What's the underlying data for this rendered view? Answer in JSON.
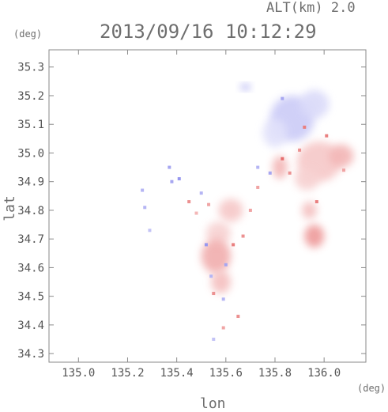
{
  "header": {
    "alt_label": "ALT(km) 2.0",
    "timestamp": "2013/09/16 10:12:29"
  },
  "chart_data": {
    "type": "heatmap",
    "title": "2013/09/16 10:12:29",
    "subtitle": "ALT(km) 2.0",
    "xlabel": "lon",
    "ylabel": "lat",
    "x_unit": "(deg)",
    "y_unit": "(deg)",
    "xlim": [
      134.88,
      136.17
    ],
    "ylim": [
      34.27,
      35.36
    ],
    "xticks": [
      "135.0",
      "135.2",
      "135.4",
      "135.6",
      "135.8",
      "136.0"
    ],
    "yticks": [
      "34.3",
      "34.4",
      "34.5",
      "34.6",
      "34.7",
      "34.8",
      "34.9",
      "35.0",
      "35.1",
      "35.2",
      "35.3"
    ],
    "grid": false,
    "colors": {
      "positive": "#e04848",
      "negative": "#6a6ae8",
      "frame": "#888888"
    },
    "echo_regions": [
      {
        "lon": 135.87,
        "lat": 35.12,
        "rx": 0.09,
        "ry": 0.08,
        "value": -0.35
      },
      {
        "lon": 135.96,
        "lat": 35.17,
        "rx": 0.06,
        "ry": 0.05,
        "value": -0.25
      },
      {
        "lon": 135.8,
        "lat": 35.07,
        "rx": 0.05,
        "ry": 0.05,
        "value": -0.2
      },
      {
        "lon": 135.98,
        "lat": 34.97,
        "rx": 0.09,
        "ry": 0.07,
        "value": 0.3
      },
      {
        "lon": 136.07,
        "lat": 34.99,
        "rx": 0.05,
        "ry": 0.04,
        "value": 0.4
      },
      {
        "lon": 135.93,
        "lat": 34.91,
        "rx": 0.05,
        "ry": 0.04,
        "value": 0.25
      },
      {
        "lon": 135.94,
        "lat": 34.8,
        "rx": 0.03,
        "ry": 0.03,
        "value": 0.35
      },
      {
        "lon": 135.96,
        "lat": 34.71,
        "rx": 0.04,
        "ry": 0.04,
        "value": 0.55
      },
      {
        "lon": 135.62,
        "lat": 34.8,
        "rx": 0.05,
        "ry": 0.04,
        "value": 0.3
      },
      {
        "lon": 135.57,
        "lat": 34.72,
        "rx": 0.05,
        "ry": 0.04,
        "value": 0.25
      },
      {
        "lon": 135.56,
        "lat": 34.64,
        "rx": 0.06,
        "ry": 0.06,
        "value": 0.45
      },
      {
        "lon": 135.58,
        "lat": 34.55,
        "rx": 0.04,
        "ry": 0.04,
        "value": 0.35
      },
      {
        "lon": 135.68,
        "lat": 35.23,
        "rx": 0.02,
        "ry": 0.01,
        "value": -0.6
      },
      {
        "lon": 135.82,
        "lat": 34.95,
        "rx": 0.03,
        "ry": 0.04,
        "value": 0.4
      }
    ],
    "speckles": [
      {
        "lon": 135.92,
        "lat": 35.09,
        "value": 0.7
      },
      {
        "lon": 135.9,
        "lat": 35.01,
        "value": 0.6
      },
      {
        "lon": 136.01,
        "lat": 35.06,
        "value": 0.7
      },
      {
        "lon": 135.83,
        "lat": 34.98,
        "value": 0.8
      },
      {
        "lon": 135.86,
        "lat": 34.93,
        "value": 0.6
      },
      {
        "lon": 135.78,
        "lat": 34.93,
        "value": -0.6
      },
      {
        "lon": 135.73,
        "lat": 34.95,
        "value": -0.5
      },
      {
        "lon": 135.38,
        "lat": 34.9,
        "value": -0.6
      },
      {
        "lon": 135.41,
        "lat": 34.91,
        "value": -0.7
      },
      {
        "lon": 135.37,
        "lat": 34.95,
        "value": -0.6
      },
      {
        "lon": 135.26,
        "lat": 34.87,
        "value": -0.5
      },
      {
        "lon": 135.27,
        "lat": 34.81,
        "value": -0.5
      },
      {
        "lon": 135.29,
        "lat": 34.73,
        "value": -0.4
      },
      {
        "lon": 135.45,
        "lat": 34.83,
        "value": 0.6
      },
      {
        "lon": 135.5,
        "lat": 34.86,
        "value": -0.5
      },
      {
        "lon": 135.53,
        "lat": 34.82,
        "value": 0.5
      },
      {
        "lon": 135.48,
        "lat": 34.79,
        "value": 0.4
      },
      {
        "lon": 135.52,
        "lat": 34.68,
        "value": -0.7
      },
      {
        "lon": 135.6,
        "lat": 34.61,
        "value": -0.6
      },
      {
        "lon": 135.54,
        "lat": 34.57,
        "value": -0.5
      },
      {
        "lon": 135.63,
        "lat": 34.68,
        "value": 0.7
      },
      {
        "lon": 135.59,
        "lat": 34.49,
        "value": -0.5
      },
      {
        "lon": 135.55,
        "lat": 34.51,
        "value": 0.6
      },
      {
        "lon": 135.65,
        "lat": 34.43,
        "value": 0.6
      },
      {
        "lon": 135.59,
        "lat": 34.39,
        "value": 0.5
      },
      {
        "lon": 135.55,
        "lat": 34.35,
        "value": -0.4
      },
      {
        "lon": 135.7,
        "lat": 34.8,
        "value": 0.5
      },
      {
        "lon": 135.67,
        "lat": 34.71,
        "value": 0.6
      },
      {
        "lon": 135.73,
        "lat": 34.88,
        "value": 0.5
      },
      {
        "lon": 135.97,
        "lat": 34.83,
        "value": 0.7
      },
      {
        "lon": 136.08,
        "lat": 34.94,
        "value": 0.5
      },
      {
        "lon": 135.83,
        "lat": 35.19,
        "value": -0.6
      }
    ]
  }
}
